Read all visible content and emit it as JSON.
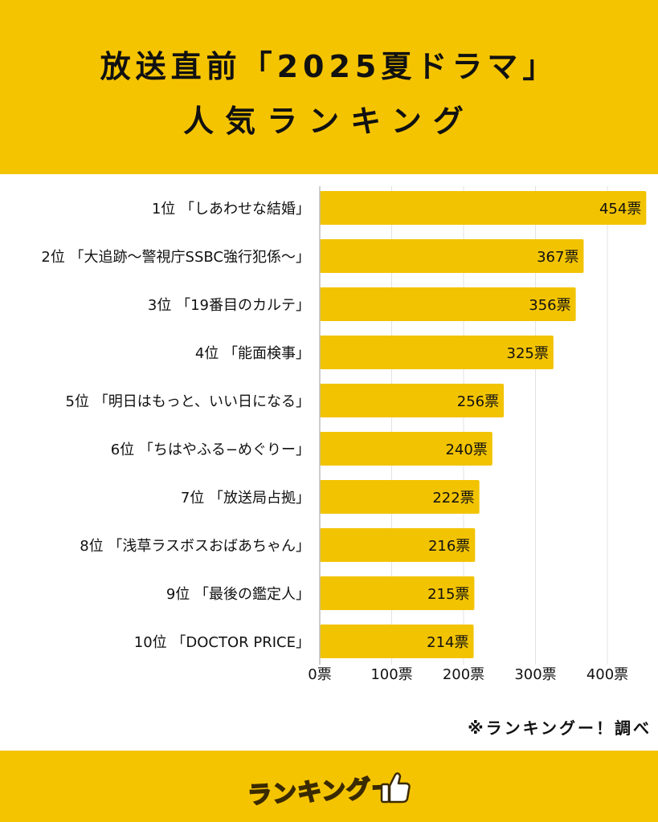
{
  "header": {
    "title_line1": "放送直前「2025夏ドラマ」",
    "title_line2": "人気ランキング"
  },
  "credit": "※ランキングー！調べ",
  "logo": {
    "text": "ランキングー",
    "icon": "thumbs-up-icon"
  },
  "colors": {
    "background": "#F5C400",
    "bar": "#F2C300",
    "panel": "#FFFFFF",
    "grid": "#E2E2E2",
    "text": "#111111"
  },
  "chart_data": {
    "type": "bar",
    "orientation": "horizontal",
    "categories": [
      "1位 「しあわせな結婚」",
      "2位 「大追跡〜警視庁SSBC強行犯係〜」",
      "3位 「19番目のカルテ」",
      "4位 「能面検事」",
      "5位 「明日はもっと、いい日になる」",
      "6位 「ちはやふる−めぐりー」",
      "7位 「放送局占拠」",
      "8位 「浅草ラスボスおばあちゃん」",
      "9位 「最後の鑑定人」",
      "10位 「DOCTOR PRICE」"
    ],
    "values": [
      454,
      367,
      356,
      325,
      256,
      240,
      222,
      216,
      215,
      214
    ],
    "value_labels": [
      "454票",
      "367票",
      "356票",
      "325票",
      "256票",
      "240票",
      "222票",
      "216票",
      "215票",
      "214票"
    ],
    "xlim": [
      0,
      450
    ],
    "xticks": [
      0,
      100,
      200,
      300,
      400
    ],
    "xtick_labels": [
      "0票",
      "100票",
      "200票",
      "300票",
      "400票"
    ],
    "grid": "vertical"
  }
}
